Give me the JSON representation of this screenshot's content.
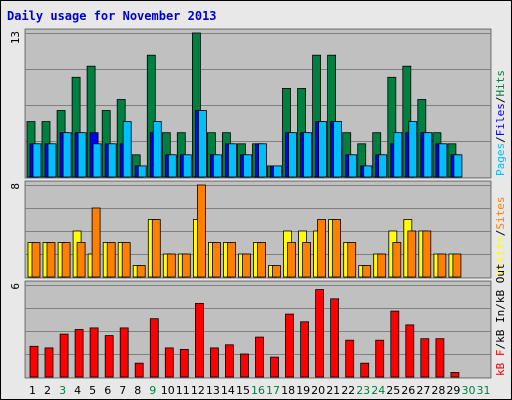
{
  "chart_data": {
    "type": "bar",
    "title": "Daily usage for November 2013",
    "categories": [
      "1",
      "2",
      "3",
      "4",
      "5",
      "6",
      "7",
      "8",
      "9",
      "10",
      "11",
      "12",
      "13",
      "14",
      "15",
      "16",
      "17",
      "18",
      "19",
      "20",
      "21",
      "22",
      "23",
      "24",
      "25",
      "26",
      "27",
      "28",
      "29",
      "30",
      "31"
    ],
    "weekend_days": [
      3,
      9,
      16,
      17,
      23,
      24,
      30,
      31
    ],
    "panels": [
      {
        "name": "hits-files-pages",
        "ymax_label": "13",
        "ymax": 13,
        "legend": [
          "Pages",
          "/",
          "Files",
          "/",
          "Hits"
        ],
        "series": [
          {
            "name": "Hits",
            "color": "#008040",
            "values": [
              5,
              5,
              6,
              9,
              10,
              6,
              7,
              2,
              11,
              4,
              4,
              13,
              4,
              4,
              3,
              3,
              1,
              8,
              8,
              11,
              11,
              4,
              3,
              4,
              9,
              10,
              7,
              4,
              3,
              0,
              0
            ]
          },
          {
            "name": "Files",
            "color": "#0000ff",
            "values": [
              3,
              3,
              4,
              4,
              4,
              3,
              3,
              1,
              4,
              2,
              2,
              6,
              2,
              3,
              2,
              3,
              1,
              4,
              4,
              5,
              5,
              2,
              1,
              2,
              3,
              4,
              4,
              3,
              2,
              0,
              0
            ]
          },
          {
            "name": "Pages",
            "color": "#00bfff",
            "values": [
              3,
              3,
              4,
              4,
              3,
              3,
              5,
              1,
              5,
              2,
              2,
              6,
              2,
              3,
              2,
              3,
              1,
              4,
              4,
              5,
              5,
              2,
              1,
              2,
              4,
              5,
              4,
              3,
              2,
              0,
              0
            ]
          }
        ]
      },
      {
        "name": "visits-sites",
        "ymax_label": "8",
        "ymax": 8,
        "legend": [
          "Visits",
          "/",
          "Sites"
        ],
        "series": [
          {
            "name": "Visits",
            "color": "#ffff00",
            "values": [
              3,
              3,
              3,
              4,
              2,
              3,
              3,
              1,
              5,
              2,
              2,
              5,
              3,
              3,
              2,
              3,
              1,
              4,
              4,
              4,
              5,
              3,
              1,
              2,
              4,
              5,
              4,
              2,
              2,
              0,
              0
            ]
          },
          {
            "name": "Sites",
            "color": "#ff8000",
            "values": [
              3,
              3,
              3,
              3,
              6,
              3,
              3,
              1,
              5,
              2,
              2,
              8,
              3,
              3,
              2,
              3,
              1,
              3,
              3,
              5,
              5,
              3,
              1,
              2,
              3,
              4,
              4,
              2,
              2,
              0,
              0
            ]
          }
        ]
      },
      {
        "name": "kbytes",
        "ymax_label": "6",
        "ymax": 6,
        "legend": [
          "kB F",
          "/",
          "kB In",
          "/",
          "kB Out"
        ],
        "series": [
          {
            "name": "kB F",
            "color": "#ff0000",
            "values": [
              2.0,
              1.9,
              2.8,
              3.1,
              3.2,
              2.7,
              3.2,
              0.9,
              3.8,
              1.9,
              1.8,
              4.8,
              1.9,
              2.1,
              1.5,
              2.6,
              1.3,
              4.1,
              3.6,
              5.7,
              5.1,
              2.4,
              0.9,
              2.4,
              4.3,
              3.4,
              2.5,
              2.5,
              0.3,
              0,
              0
            ]
          }
        ]
      }
    ]
  },
  "colors": {
    "plot_bg": "#c0c0c0",
    "grid": "#808080",
    "weekday_label": "#000000",
    "weekend_label": "#008040",
    "legend_separator": "#000000",
    "bevel_light": "#ffffff",
    "bevel_dark": "#606060",
    "bar_outline": "#000000"
  }
}
